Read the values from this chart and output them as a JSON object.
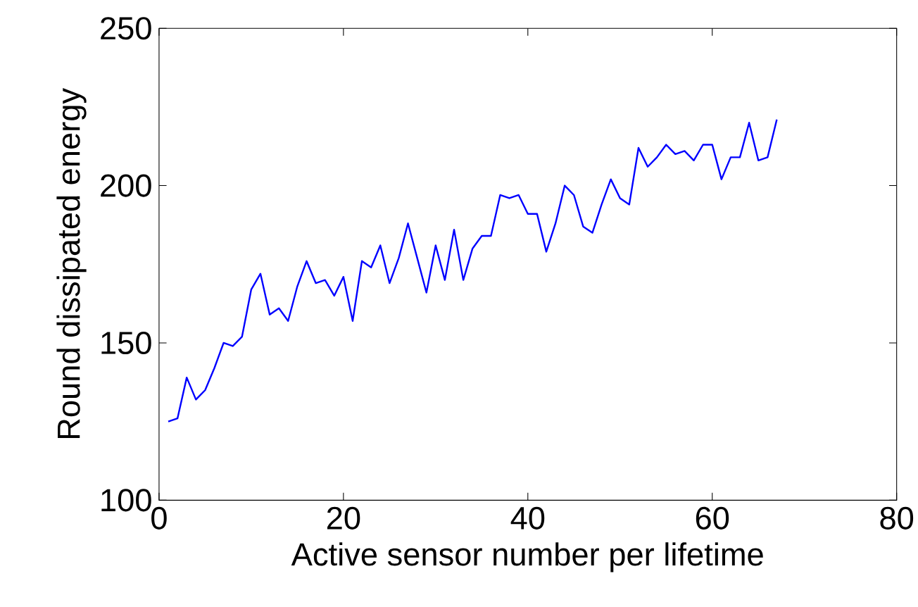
{
  "chart_data": {
    "type": "line",
    "xlabel": "Active sensor number per lifetime",
    "ylabel": "Round dissipated energy",
    "x": [
      1,
      2,
      3,
      4,
      5,
      6,
      7,
      8,
      9,
      10,
      11,
      12,
      13,
      14,
      15,
      16,
      17,
      18,
      19,
      20,
      21,
      22,
      23,
      24,
      25,
      26,
      27,
      28,
      29,
      30,
      31,
      32,
      33,
      34,
      35,
      36,
      37,
      38,
      39,
      40,
      41,
      42,
      43,
      44,
      45,
      46,
      47,
      48,
      49,
      50,
      51,
      52,
      53,
      54,
      55,
      56,
      57,
      58,
      59,
      60,
      61,
      62,
      63,
      64,
      65,
      66,
      67
    ],
    "series": [
      {
        "color": "#0000ff",
        "values": [
          125,
          126,
          139,
          132,
          135,
          142,
          150,
          149,
          152,
          167,
          172,
          159,
          161,
          157,
          168,
          176,
          169,
          170,
          165,
          171,
          157,
          176,
          174,
          181,
          169,
          177,
          188,
          177,
          166,
          181,
          170,
          186,
          170,
          180,
          184,
          184,
          197,
          196,
          197,
          191,
          191,
          179,
          188,
          200,
          197,
          187,
          185,
          194,
          202,
          196,
          194,
          212,
          206,
          209,
          213,
          210,
          211,
          208,
          213,
          213,
          202,
          209,
          209,
          220,
          208,
          209,
          221
        ]
      }
    ],
    "xlim": [
      0,
      80
    ],
    "ylim": [
      100,
      250
    ],
    "xticks": [
      0,
      20,
      40,
      60,
      80
    ],
    "yticks": [
      100,
      150,
      200,
      250
    ],
    "marker": "none",
    "line_style": "solid"
  }
}
